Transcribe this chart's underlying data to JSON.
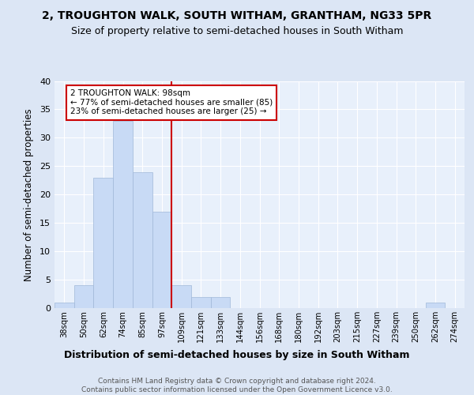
{
  "title1": "2, TROUGHTON WALK, SOUTH WITHAM, GRANTHAM, NG33 5PR",
  "title2": "Size of property relative to semi-detached houses in South Witham",
  "xlabel": "Distribution of semi-detached houses by size in South Witham",
  "ylabel": "Number of semi-detached properties",
  "footer": "Contains HM Land Registry data © Crown copyright and database right 2024.\nContains public sector information licensed under the Open Government Licence v3.0.",
  "bins": [
    "38sqm",
    "50sqm",
    "62sqm",
    "74sqm",
    "85sqm",
    "97sqm",
    "109sqm",
    "121sqm",
    "133sqm",
    "144sqm",
    "156sqm",
    "168sqm",
    "180sqm",
    "192sqm",
    "203sqm",
    "215sqm",
    "227sqm",
    "239sqm",
    "250sqm",
    "262sqm",
    "274sqm"
  ],
  "counts": [
    1,
    4,
    23,
    33,
    24,
    17,
    4,
    2,
    2,
    0,
    0,
    0,
    0,
    0,
    0,
    0,
    0,
    0,
    0,
    1,
    0
  ],
  "bar_color": "#c8daf5",
  "bar_edge_color": "#a0b8d8",
  "vline_color": "#cc0000",
  "annotation_text": "2 TROUGHTON WALK: 98sqm\n← 77% of semi-detached houses are smaller (85)\n23% of semi-detached houses are larger (25) →",
  "annotation_box_color": "#ffffff",
  "annotation_box_edge": "#cc0000",
  "ylim": [
    0,
    40
  ],
  "yticks": [
    0,
    5,
    10,
    15,
    20,
    25,
    30,
    35,
    40
  ],
  "bg_color": "#dce6f5",
  "plot_bg_color": "#e8f0fb",
  "title1_fontsize": 10,
  "title2_fontsize": 9,
  "xlabel_fontsize": 9,
  "ylabel_fontsize": 8.5
}
